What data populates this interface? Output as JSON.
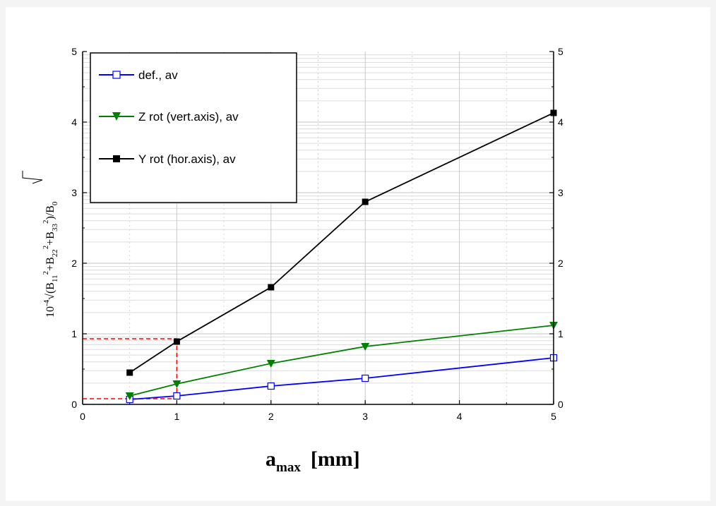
{
  "chart_data": {
    "type": "line",
    "xlim": [
      0,
      5
    ],
    "ylim": [
      0,
      5
    ],
    "x_ticks": [
      0,
      1,
      2,
      3,
      4,
      5
    ],
    "y_ticks": [
      0,
      1,
      2,
      3,
      4,
      5
    ],
    "xlabel": {
      "main": "a",
      "sub": "max",
      "unit": "[mm]"
    },
    "ylabel": {
      "prefix": "10",
      "prefix_sup": "-4",
      "root": "√(B",
      "s1": "11",
      "e1": "2",
      "p1": "+B",
      "s2": "22",
      "e2": "2",
      "p2": "+B",
      "s3": "33",
      "e3": "2",
      "tail": ")/B",
      "s4": "0"
    },
    "grid": "log-style minor grid, dotted vertical lines",
    "legend_position": "top-left",
    "series": [
      {
        "name": "def., av",
        "color": "#0000ff",
        "marker": "open-square",
        "x": [
          0.5,
          1,
          2,
          3,
          5
        ],
        "y": [
          0.07,
          0.12,
          0.26,
          0.37,
          0.66
        ]
      },
      {
        "name": "Z rot (vert.axis), av",
        "color": "#008000",
        "marker": "triangle-down",
        "x": [
          0.5,
          1,
          2,
          3,
          5
        ],
        "y": [
          0.12,
          0.29,
          0.58,
          0.82,
          1.12
        ]
      },
      {
        "name": "Y rot (hor.axis), av",
        "color": "#000000",
        "marker": "filled-square",
        "x": [
          0.5,
          1,
          2,
          3,
          5
        ],
        "y": [
          0.45,
          0.89,
          1.66,
          2.87,
          4.13
        ]
      }
    ],
    "annotations": [
      {
        "type": "dashed-guide",
        "color": "#ff0000",
        "x": 1,
        "y": 0.93
      },
      {
        "type": "dashed-guide",
        "color": "#ff0000",
        "x": 1,
        "y": 0.08
      }
    ]
  }
}
